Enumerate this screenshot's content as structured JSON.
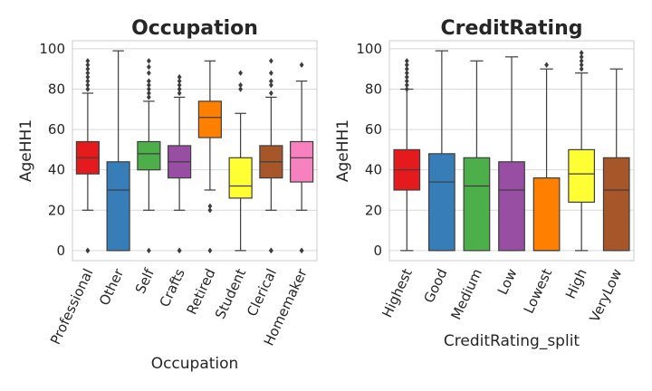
{
  "chart_data": [
    {
      "type": "box",
      "title": "Occupation",
      "xlabel": "Occupation",
      "ylabel": "AgeHH1",
      "ylim": [
        -5,
        104
      ],
      "yticks": [
        0,
        20,
        40,
        60,
        80,
        100
      ],
      "grid": true,
      "categories": [
        {
          "name": "Professional",
          "color": "#e41a1c",
          "q1": 38,
          "median": 46,
          "q3": 54,
          "lo": 20,
          "hi": 78,
          "fliers": [
            0,
            0,
            80,
            82,
            84,
            86,
            88,
            90,
            92,
            94
          ]
        },
        {
          "name": "Other",
          "color": "#377eb8",
          "q1": 0,
          "median": 30,
          "q3": 44,
          "lo": 0,
          "hi": 99,
          "fliers": []
        },
        {
          "name": "Self",
          "color": "#4daf4a",
          "q1": 40,
          "median": 48,
          "q3": 54,
          "lo": 20,
          "hi": 74,
          "fliers": [
            0,
            76,
            78,
            80,
            82,
            84,
            88,
            91,
            94
          ]
        },
        {
          "name": "Crafts",
          "color": "#984ea3",
          "q1": 36,
          "median": 44,
          "q3": 52,
          "lo": 20,
          "hi": 76,
          "fliers": [
            0,
            0,
            78,
            80,
            82,
            84,
            86
          ]
        },
        {
          "name": "Retired",
          "color": "#ff7f00",
          "q1": 56,
          "median": 66,
          "q3": 74,
          "lo": 30,
          "hi": 94,
          "fliers": [
            0,
            20,
            22
          ]
        },
        {
          "name": "Student",
          "color": "#ffff33",
          "q1": 26,
          "median": 32,
          "q3": 46,
          "lo": 0,
          "hi": 68,
          "fliers": [
            80,
            82,
            88
          ]
        },
        {
          "name": "Clerical",
          "color": "#a65628",
          "q1": 36,
          "median": 44,
          "q3": 52,
          "lo": 20,
          "hi": 76,
          "fliers": [
            0,
            0,
            78,
            82,
            84,
            88,
            94
          ]
        },
        {
          "name": "Homemaker",
          "color": "#f781bf",
          "q1": 34,
          "median": 46,
          "q3": 54,
          "lo": 20,
          "hi": 84,
          "fliers": [
            0,
            0,
            92
          ]
        }
      ]
    },
    {
      "type": "box",
      "title": "CreditRating",
      "xlabel": "CreditRating_split",
      "ylabel": "AgeHH1",
      "ylim": [
        -5,
        104
      ],
      "yticks": [
        0,
        20,
        40,
        60,
        80,
        100
      ],
      "grid": true,
      "categories": [
        {
          "name": "Highest",
          "color": "#e41a1c",
          "q1": 30,
          "median": 40,
          "q3": 50,
          "lo": 0,
          "hi": 80,
          "fliers": [
            80,
            82,
            84,
            86,
            88,
            90,
            92,
            94
          ]
        },
        {
          "name": "Good",
          "color": "#377eb8",
          "q1": 0,
          "median": 34,
          "q3": 48,
          "lo": 0,
          "hi": 99,
          "fliers": []
        },
        {
          "name": "Medium",
          "color": "#4daf4a",
          "q1": 0,
          "median": 32,
          "q3": 46,
          "lo": 0,
          "hi": 94,
          "fliers": []
        },
        {
          "name": "Low",
          "color": "#984ea3",
          "q1": 0,
          "median": 30,
          "q3": 44,
          "lo": 0,
          "hi": 96,
          "fliers": []
        },
        {
          "name": "Lowest",
          "color": "#ff7f00",
          "q1": 0,
          "median": 0,
          "q3": 36,
          "lo": 0,
          "hi": 90,
          "fliers": [
            92
          ]
        },
        {
          "name": "High",
          "color": "#ffff33",
          "q1": 24,
          "median": 38,
          "q3": 50,
          "lo": 0,
          "hi": 88,
          "fliers": [
            90,
            92,
            94,
            96,
            98
          ]
        },
        {
          "name": "VeryLow",
          "color": "#a65628",
          "q1": 0,
          "median": 30,
          "q3": 46,
          "lo": 0,
          "hi": 90,
          "fliers": []
        }
      ]
    }
  ]
}
